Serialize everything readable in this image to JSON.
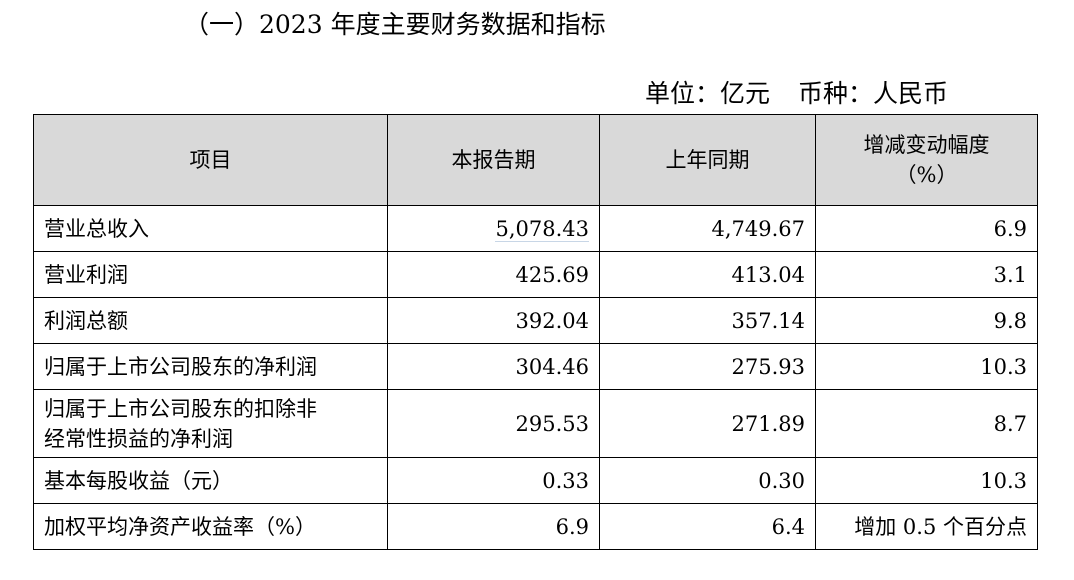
{
  "title": "（一）2023 年度主要财务数据和指标",
  "unit": {
    "unit_text": "单位：亿元",
    "currency_text": "币种：人民币"
  },
  "table": {
    "headers": {
      "item": "项目",
      "current": "本报告期",
      "prior": "上年同期",
      "change_line1": "增减变动幅度",
      "change_line2": "（%）"
    },
    "rows": [
      {
        "item": "营业总收入",
        "current": "5,078.43",
        "prior": "4,749.67",
        "change": "6.9"
      },
      {
        "item": "营业利润",
        "current": "425.69",
        "prior": "413.04",
        "change": "3.1"
      },
      {
        "item": "利润总额",
        "current": "392.04",
        "prior": "357.14",
        "change": "9.8"
      },
      {
        "item": "归属于上市公司股东的净利润",
        "current": "304.46",
        "prior": "275.93",
        "change": "10.3"
      },
      {
        "item_line1": "归属于上市公司股东的扣除非",
        "item_line2": "经常性损益的净利润",
        "current": "295.53",
        "prior": "271.89",
        "change": "8.7"
      },
      {
        "item": "基本每股收益（元）",
        "current": "0.33",
        "prior": "0.30",
        "change": "10.3"
      },
      {
        "item": "加权平均净资产收益率（%）",
        "current": "6.9",
        "prior": "6.4",
        "change": "增加 0.5 个百分点"
      }
    ]
  }
}
